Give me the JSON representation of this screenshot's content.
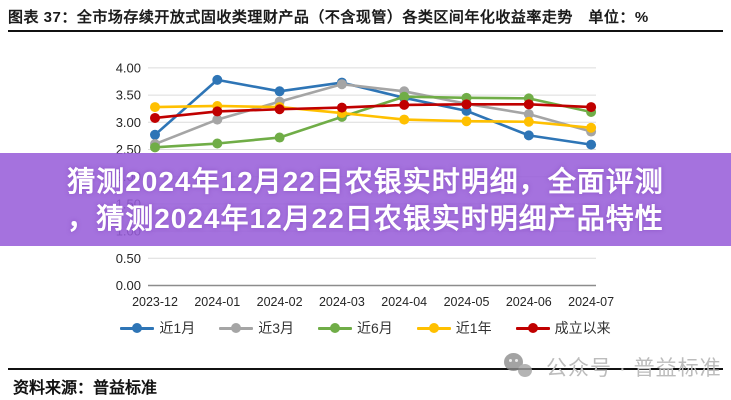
{
  "header": {
    "title": "图表 37：全市场存续开放式固收类理财产品（不含现管）各类区间年化收益率走势　单位：%"
  },
  "banner": {
    "line1": "猜测2024年12月22日农银实时明细，全面评测",
    "line2": "，猜测2024年12月22日农银实时明细产品特性",
    "bg_color": "rgba(153,95,217,0.88)",
    "text_color": "#ffffff"
  },
  "chart_data": {
    "type": "line",
    "title": "全市场存续开放式固收类理财产品（不含现管）各类区间年化收益率走势",
    "unit": "%",
    "categories": [
      "2023-12",
      "2024-01",
      "2024-02",
      "2024-03",
      "2024-04",
      "2024-05",
      "2024-06",
      "2024-07"
    ],
    "series": [
      {
        "name": "近1月",
        "color": "#2E75B6",
        "values": [
          2.77,
          3.78,
          3.57,
          3.73,
          3.45,
          3.21,
          2.76,
          2.59
        ]
      },
      {
        "name": "近3月",
        "color": "#A5A5A5",
        "values": [
          2.6,
          3.05,
          3.38,
          3.7,
          3.57,
          3.34,
          3.15,
          2.83
        ]
      },
      {
        "name": "近6月",
        "color": "#70AD47",
        "values": [
          2.54,
          2.61,
          2.72,
          3.1,
          3.47,
          3.45,
          3.44,
          3.19
        ]
      },
      {
        "name": "近1年",
        "color": "#FFC000",
        "values": [
          3.28,
          3.3,
          3.28,
          3.17,
          3.05,
          3.02,
          3.01,
          2.9
        ]
      },
      {
        "name": "成立以来",
        "color": "#C00000",
        "values": [
          3.08,
          3.2,
          3.24,
          3.27,
          3.32,
          3.33,
          3.33,
          3.28
        ]
      }
    ],
    "ylim": [
      0,
      4
    ],
    "yticks": [
      "0.00",
      "0.50",
      "1.00",
      "1.50",
      "2.00",
      "2.50",
      "3.00",
      "3.50",
      "4.00"
    ],
    "grid": true,
    "legend_position": "bottom"
  },
  "footer": {
    "source": "资料来源：普益标准",
    "watermark_text": "公众号 · 普益标准",
    "watermark_icon": "wechat-bubbles-icon"
  }
}
